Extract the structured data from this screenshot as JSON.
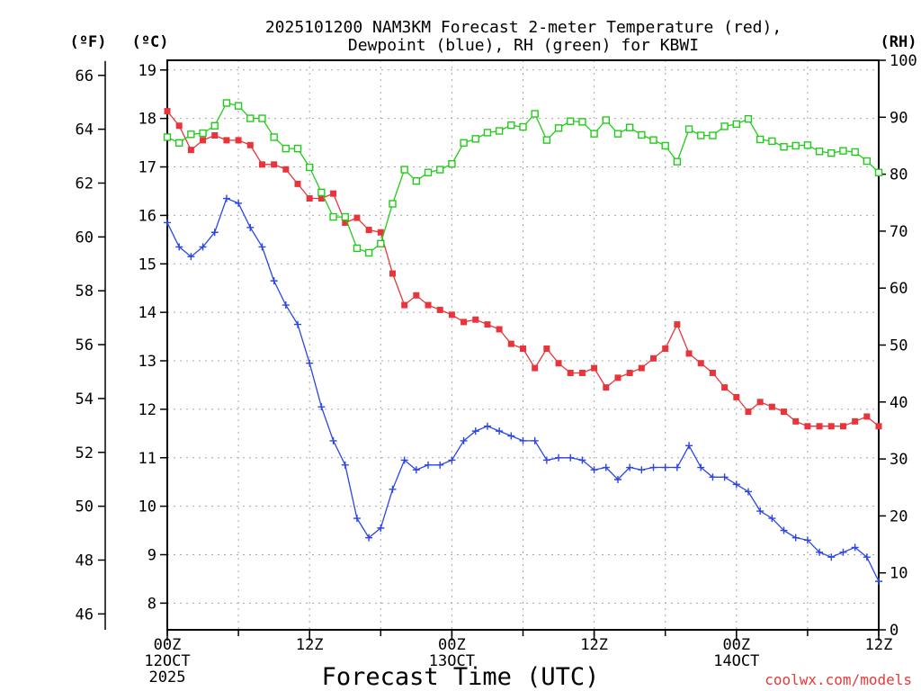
{
  "chart_data": {
    "type": "line",
    "title_line1": "2025101200 NAM3KM Forecast 2-meter Temperature (red),",
    "title_line2": "Dewpoint (blue), RH (green) for KBWI",
    "xlabel": "Forecast Time (UTC)",
    "credit": "coolwx.com/models",
    "units": {
      "left_outer": "(ºF)",
      "left_inner": "(ºC)",
      "right": "(RH)"
    },
    "x_unit": "forecast hour",
    "xlim": [
      0,
      60
    ],
    "x_ticks": [
      {
        "hour": 0,
        "label": "00Z",
        "date": "12OCT",
        "year": "2025"
      },
      {
        "hour": 12,
        "label": "12Z",
        "date": "",
        "year": ""
      },
      {
        "hour": 24,
        "label": "00Z",
        "date": "13OCT",
        "year": ""
      },
      {
        "hour": 36,
        "label": "12Z",
        "date": "",
        "year": ""
      },
      {
        "hour": 48,
        "label": "00Z",
        "date": "14OCT",
        "year": ""
      },
      {
        "hour": 60,
        "label": "12Z",
        "date": "",
        "year": ""
      }
    ],
    "celsius_axis": {
      "ylim": [
        7.45,
        19.2
      ],
      "ticks": [
        8,
        9,
        10,
        11,
        12,
        13,
        14,
        15,
        16,
        17,
        18,
        19
      ]
    },
    "fahrenheit_axis": {
      "ticks": [
        46,
        48,
        50,
        52,
        54,
        56,
        58,
        60,
        62,
        64,
        66
      ]
    },
    "rh_axis": {
      "ylim": [
        0,
        100
      ],
      "ticks": [
        0,
        10,
        20,
        30,
        40,
        50,
        60,
        70,
        80,
        90,
        100
      ]
    },
    "x": [
      0,
      1,
      2,
      3,
      4,
      5,
      6,
      7,
      8,
      9,
      10,
      11,
      12,
      13,
      14,
      15,
      16,
      17,
      18,
      19,
      20,
      21,
      22,
      23,
      24,
      25,
      26,
      27,
      28,
      29,
      30,
      31,
      32,
      33,
      34,
      35,
      36,
      37,
      38,
      39,
      40,
      41,
      42,
      43,
      44,
      45,
      46,
      47,
      48,
      49,
      50,
      51,
      52,
      53,
      54,
      55,
      56,
      57,
      58,
      59,
      60
    ],
    "series": [
      {
        "name": "2-meter Temperature",
        "axis": "celsius",
        "color": "#e8343a",
        "marker": "filled-square",
        "values": [
          18.15,
          17.85,
          17.35,
          17.55,
          17.65,
          17.55,
          17.55,
          17.45,
          17.05,
          17.05,
          16.95,
          16.65,
          16.35,
          16.35,
          16.45,
          15.85,
          15.95,
          15.7,
          15.65,
          14.8,
          14.15,
          14.35,
          14.15,
          14.05,
          13.95,
          13.8,
          13.85,
          13.75,
          13.65,
          13.35,
          13.25,
          12.85,
          13.25,
          12.95,
          12.75,
          12.75,
          12.85,
          12.45,
          12.65,
          12.75,
          12.85,
          13.05,
          13.25,
          13.75,
          13.15,
          12.95,
          12.75,
          12.45,
          12.25,
          11.95,
          12.15,
          12.05,
          11.95,
          11.75,
          11.65,
          11.65,
          11.65,
          11.65,
          11.75,
          11.85,
          11.65
        ]
      },
      {
        "name": "Dewpoint",
        "axis": "celsius",
        "color": "#2b45e8",
        "marker": "plus",
        "values": [
          15.85,
          15.35,
          15.15,
          15.35,
          15.65,
          16.35,
          16.25,
          15.75,
          15.35,
          14.65,
          14.15,
          13.75,
          12.95,
          12.05,
          11.35,
          10.85,
          9.75,
          9.35,
          9.55,
          10.35,
          10.95,
          10.75,
          10.85,
          10.85,
          10.95,
          11.35,
          11.55,
          11.65,
          11.55,
          11.45,
          11.35,
          11.35,
          10.95,
          11.0,
          11.0,
          10.95,
          10.75,
          10.8,
          10.55,
          10.8,
          10.75,
          10.8,
          10.8,
          10.8,
          11.25,
          10.8,
          10.6,
          10.6,
          10.45,
          10.3,
          9.9,
          9.75,
          9.5,
          9.35,
          9.3,
          9.05,
          8.95,
          9.05,
          9.15,
          8.95,
          8.45
        ]
      },
      {
        "name": "RH",
        "axis": "rh",
        "color": "#22cc1a",
        "marker": "open-square",
        "values": [
          86.5,
          85.5,
          87,
          87.2,
          88.5,
          92.5,
          92,
          89.8,
          89.8,
          86.5,
          84.5,
          84.5,
          81.2,
          76.8,
          72.5,
          72.5,
          67,
          66.2,
          67.8,
          74.8,
          80.8,
          78.8,
          80.3,
          80.8,
          81.8,
          85.5,
          86.2,
          87.3,
          87.6,
          88.6,
          88.3,
          90.6,
          86,
          88.1,
          89.3,
          89.2,
          87.1,
          89.5,
          87.1,
          88.2,
          86.9,
          86,
          85,
          82.2,
          87.9,
          86.8,
          86.8,
          88.4,
          88.8,
          89.7,
          86.1,
          85.8,
          84.8,
          85,
          85.1,
          84,
          83.7,
          84.1,
          83.9,
          82.3,
          80.3
        ]
      }
    ]
  }
}
